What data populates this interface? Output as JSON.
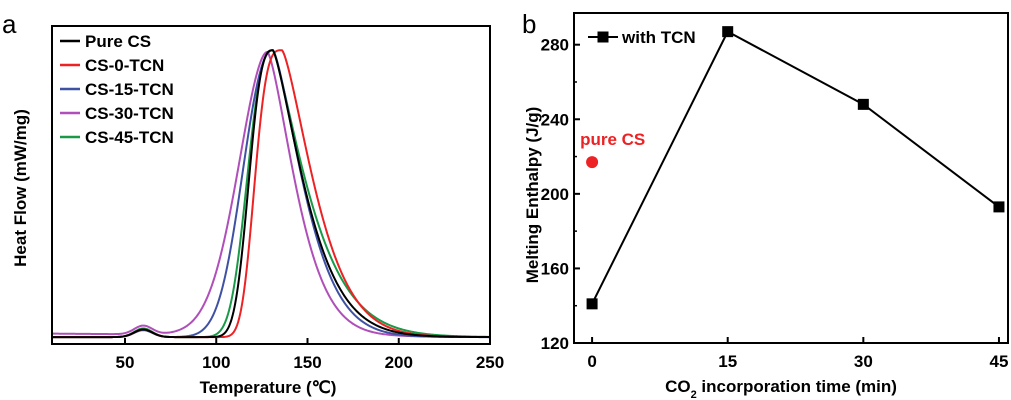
{
  "panels": {
    "a": {
      "letter": "a",
      "chart_data": {
        "type": "line",
        "xlabel": "Temperature (℃)",
        "ylabel": "Heat Flow (mW/mg)",
        "xlim": [
          10,
          250
        ],
        "ylim": [
          -0.2,
          9.0
        ],
        "x_ticks": [
          50,
          100,
          150,
          200,
          250
        ],
        "y_ticks_shown": false,
        "grid": false,
        "legend_position": "top-left",
        "legend_note": "Legend entries listed top to bottom; the curves are drawn in reverse order so Pure CS is on top.",
        "series": [
          {
            "name": "Pure CS",
            "color": "#000000",
            "peak_x": 131,
            "left_width": 15.7,
            "right_width": 24.0,
            "left_shape": 2.8,
            "right_shape": 1.35,
            "baseline_start": 0.0,
            "baseline_end": 0.0,
            "bump_x": 60,
            "bump_height": 0.22,
            "peak_height": 8.3
          },
          {
            "name": "CS-0-TCN",
            "color": "#ed2224",
            "peak_x": 136,
            "left_width": 17.3,
            "right_width": 24.5,
            "left_shape": 3.3,
            "right_shape": 1.4,
            "baseline_start": 0.0,
            "baseline_end": 0.0,
            "bump_x": 60,
            "bump_height": 0.22,
            "peak_height": 8.3
          },
          {
            "name": "CS-15-TCN",
            "color": "#3f51a3",
            "peak_x": 131,
            "left_width": 21.5,
            "right_width": 23.1,
            "left_shape": 2.25,
            "right_shape": 1.42,
            "baseline_start": 0.0,
            "baseline_end": 0.0,
            "bump_x": 60,
            "bump_height": 0.2,
            "peak_height": 8.3
          },
          {
            "name": "CS-30-TCN",
            "color": "#b04fba",
            "peak_x": 128,
            "left_width": 22.5,
            "right_width": 21.3,
            "left_shape": 1.85,
            "right_shape": 1.45,
            "baseline_start": 0.1,
            "baseline_end": 0.0,
            "bump_x": 60,
            "bump_height": 0.25,
            "peak_height": 8.2
          },
          {
            "name": "CS-45-TCN",
            "color": "#1a9a48",
            "peak_x": 131,
            "left_width": 17.2,
            "right_width": 26.3,
            "left_shape": 2.6,
            "right_shape": 1.3,
            "baseline_start": 0.0,
            "baseline_end": 0.0,
            "bump_x": 60,
            "bump_height": 0.25,
            "peak_height": 8.3
          }
        ]
      }
    },
    "b": {
      "letter": "b",
      "chart_data": {
        "type": "line",
        "xlabel_prefix": "CO",
        "xlabel_subscript": "2",
        "xlabel_suffix": " incorporation time (min)",
        "ylabel": "Melting Enthalpy (J/g)",
        "xlim": [
          -2,
          46
        ],
        "ylim": [
          120,
          297
        ],
        "x_ticks": [
          0,
          15,
          30,
          45
        ],
        "y_ticks": [
          120,
          160,
          200,
          240,
          280
        ],
        "grid": false,
        "legend_position": "top-left",
        "series": [
          {
            "name": "with TCN",
            "color": "#000000",
            "marker": "square",
            "x": [
              0,
              15,
              30,
              45
            ],
            "y": [
              141,
              287,
              248,
              193
            ]
          }
        ],
        "annotations": [
          {
            "text": "pure CS",
            "color": "#ed2224",
            "marker": "circle",
            "x": 0,
            "y": 217
          }
        ]
      }
    }
  }
}
